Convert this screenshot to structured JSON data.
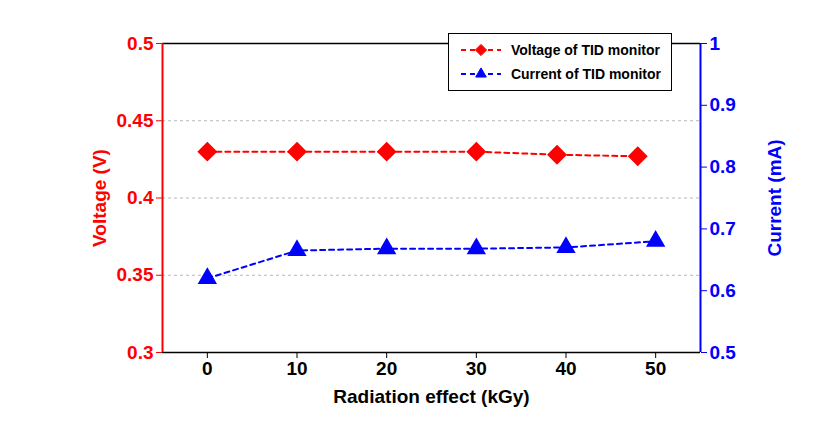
{
  "chart_data": {
    "type": "line",
    "x_label": "Radiation effect (kGy)",
    "y_label": "Voltage (V)",
    "y2_label": "Current (mA)",
    "xlim": [
      -5,
      55
    ],
    "xticks": [
      0,
      10,
      20,
      30,
      40,
      50
    ],
    "ylim": [
      0.3,
      0.5
    ],
    "yticks": [
      0.3,
      0.35,
      0.4,
      0.45,
      0.5
    ],
    "y2lim": [
      0.5,
      1
    ],
    "y2ticks": [
      0.5,
      0.6,
      0.7,
      0.8,
      0.9,
      1
    ],
    "grid": true,
    "legend": "top-right",
    "series": [
      {
        "name": "Voltage of TID monitor",
        "color": "#ff0000",
        "marker": "diamond",
        "line_style": "dashed",
        "x": [
          0,
          10,
          20,
          30,
          39,
          48
        ],
        "values": [
          0.43,
          0.43,
          0.43,
          0.43,
          0.428,
          0.427
        ]
      },
      {
        "name": "Current of TID monitor",
        "color": "#0000ff",
        "marker": "triangle",
        "line_style": "dashed",
        "axis": "y2",
        "x": [
          0,
          10,
          20,
          30,
          40,
          50
        ],
        "values": [
          0.62,
          0.665,
          0.668,
          0.668,
          0.67,
          0.68
        ]
      }
    ]
  }
}
